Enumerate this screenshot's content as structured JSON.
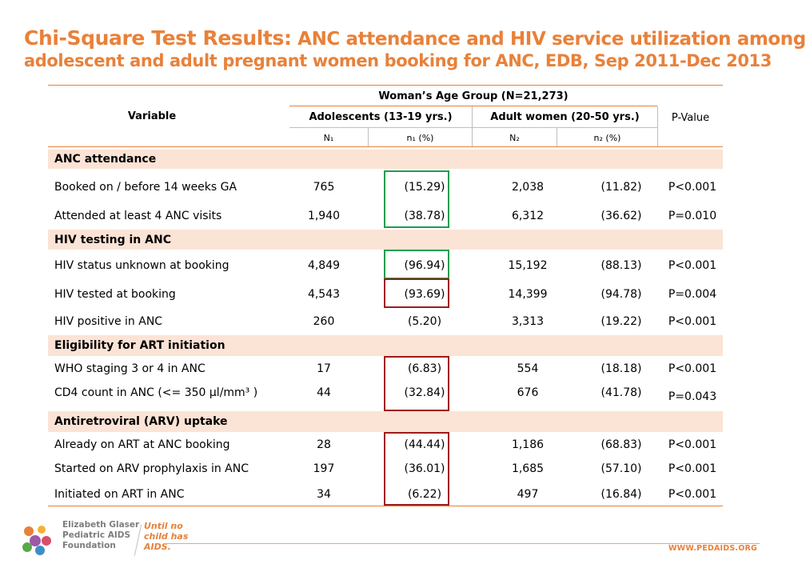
{
  "title": {
    "main": "Chi-Square Test Results:",
    "rest": " ANC attendance and HIV service utilization among",
    "line2": "adolescent and adult pregnant women booking for ANC, EDB, Sep 2011-Dec 2013"
  },
  "header": {
    "variable": "Variable",
    "group": "Woman’s Age Group (N=21,273)",
    "adolescents": "Adolescents (13-19 yrs.)",
    "adults": "Adult women (20-50 yrs.)",
    "pvalue": "P-Value",
    "n1": "N₁",
    "p1": "n₁ (%)",
    "n2": "N₂",
    "p2": "n₂ (%)"
  },
  "sections": [
    {
      "name": "ANC attendance",
      "rows": [
        {
          "variable": "Booked on / before 14 weeks GA",
          "n1": "765",
          "p1": "(15.29)",
          "n2": "2,038",
          "p2": "(11.82)",
          "pvalue": "P<0.001"
        },
        {
          "variable": "Attended at least 4 ANC visits",
          "n1": "1,940",
          "p1": "(38.78)",
          "n2": "6,312",
          "p2": "(36.62)",
          "pvalue": "P=0.010"
        }
      ]
    },
    {
      "name": "HIV testing in ANC",
      "rows": [
        {
          "variable": "HIV status unknown at booking",
          "n1": "4,849",
          "p1": "(96.94)",
          "n2": "15,192",
          "p2": "(88.13)",
          "pvalue": "P<0.001"
        },
        {
          "variable": "HIV tested at booking",
          "n1": "4,543",
          "p1": "(93.69)",
          "n2": "14,399",
          "p2": "(94.78)",
          "pvalue": "P=0.004"
        },
        {
          "variable": "HIV positive in ANC",
          "n1": "260",
          "p1": "(5.20)",
          "n2": "3,313",
          "p2": "(19.22)",
          "pvalue": "P<0.001"
        }
      ]
    },
    {
      "name": "Eligibility for ART initiation",
      "rows": [
        {
          "variable": "WHO staging 3 or 4 in ANC",
          "n1": "17",
          "p1": "(6.83)",
          "n2": "554",
          "p2": "(18.18)",
          "pvalue": "P<0.001"
        },
        {
          "variable": "CD4 count in ANC (<= 350 µl/mm³ )",
          "n1": "44",
          "p1": "(32.84)",
          "n2": "676",
          "p2": "(41.78)",
          "pvalue": "P=0.043"
        }
      ]
    },
    {
      "name": "Antiretroviral (ARV) uptake",
      "rows": [
        {
          "variable": "Already on ART at ANC booking",
          "n1": "28",
          "p1": "(44.44)",
          "n2": "1,186",
          "p2": "(68.83)",
          "pvalue": "P<0.001"
        },
        {
          "variable": "Started on ARV prophylaxis in ANC",
          "n1": "197",
          "p1": "(36.01)",
          "n2": "1,685",
          "p2": "(57.10)",
          "pvalue": "P<0.001"
        },
        {
          "variable": "Initiated on ART in ANC",
          "n1": "34",
          "p1": "(6.22)",
          "n2": "497",
          "p2": "(16.84)",
          "pvalue": "P<0.001"
        }
      ]
    }
  ],
  "footer": {
    "org_line1": "Elizabeth Glaser",
    "org_line2": "Pediatric AIDS",
    "org_line3": "Foundation",
    "tag_line1": "Until no",
    "tag_line2": "child has",
    "tag_line3": "AIDS.",
    "website": "WWW.PEDAIDS.ORG"
  },
  "colors": {
    "accent": "#e8813a",
    "section_fill": "#fbe3d6",
    "box_green": "#1e9e50",
    "box_red": "#a01a1a"
  }
}
